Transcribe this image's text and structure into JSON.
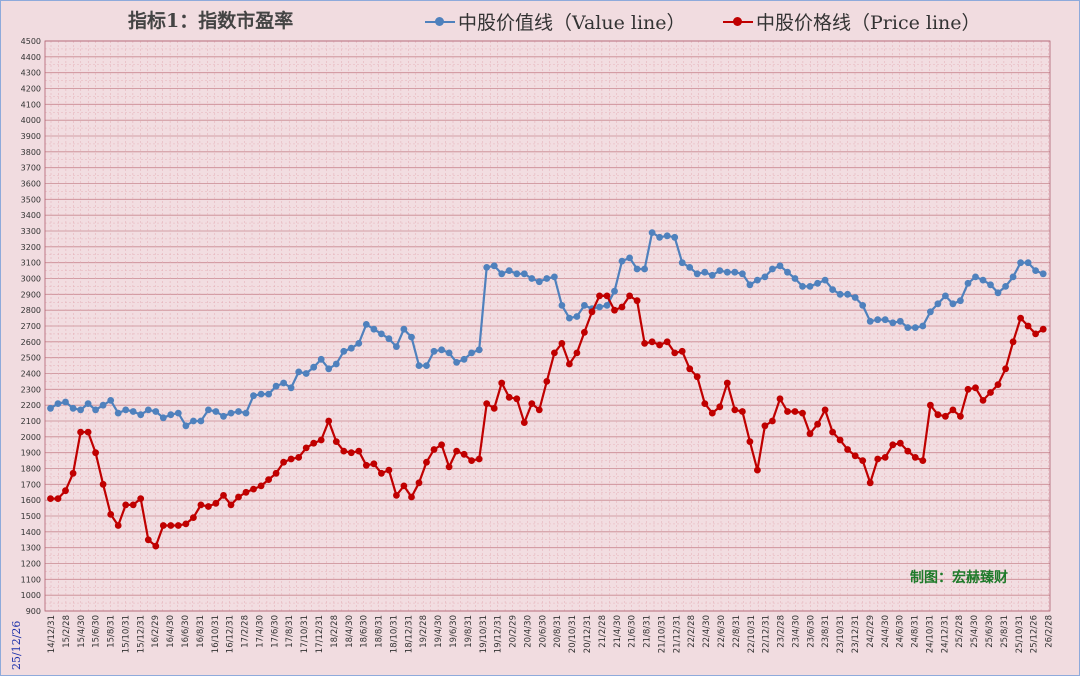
{
  "chart_data": {
    "type": "line",
    "title": "指标1：指数市盈率",
    "xlabel": "",
    "ylabel": "",
    "ylim": [
      900,
      4500
    ],
    "yticks": [
      900,
      1000,
      1100,
      1200,
      1300,
      1400,
      1500,
      1600,
      1700,
      1800,
      1900,
      2000,
      2100,
      2200,
      2300,
      2400,
      2500,
      2600,
      2700,
      2800,
      2900,
      3000,
      3100,
      3200,
      3300,
      3400,
      3500,
      3600,
      3700,
      3800,
      3900,
      4000,
      4100,
      4200,
      4300,
      4400,
      4500
    ],
    "x_tick_labels": [
      "14/12/31",
      "15/2/28",
      "15/4/30",
      "15/6/30",
      "15/8/31",
      "15/10/31",
      "15/12/31",
      "16/2/29",
      "16/4/30",
      "16/6/30",
      "16/8/31",
      "16/10/31",
      "16/12/31",
      "17/2/28",
      "17/4/30",
      "17/6/30",
      "17/8/31",
      "17/10/31",
      "17/12/31",
      "18/2/28",
      "18/4/30",
      "18/6/30",
      "18/8/31",
      "18/10/31",
      "18/12/31",
      "19/2/28",
      "19/4/30",
      "19/6/30",
      "19/8/31",
      "19/10/31",
      "19/12/31",
      "20/2/29",
      "20/4/30",
      "20/6/30",
      "20/8/31",
      "20/10/31",
      "20/12/31",
      "21/2/28",
      "21/4/30",
      "21/6/30",
      "21/8/31",
      "21/10/31",
      "21/12/31",
      "22/2/28",
      "22/4/30",
      "22/6/30",
      "22/8/31",
      "22/10/31",
      "22/12/31",
      "23/2/28",
      "23/4/30",
      "23/6/30",
      "23/8/31",
      "23/10/31",
      "23/12/31",
      "24/2/29",
      "24/4/30",
      "24/6/30",
      "24/8/31",
      "24/10/31",
      "24/12/31",
      "25/2/28",
      "25/4/30",
      "25/6/30",
      "25/8/31",
      "25/10/31",
      "25/12/26",
      "26/2/28"
    ],
    "grid": true,
    "legend_position": "top",
    "series": [
      {
        "name": "中股价值线（Value line）",
        "color": "#4f81bd",
        "values": [
          2180,
          2210,
          2220,
          2180,
          2170,
          2210,
          2170,
          2200,
          2230,
          2150,
          2170,
          2160,
          2140,
          2170,
          2160,
          2120,
          2140,
          2150,
          2070,
          2100,
          2100,
          2170,
          2160,
          2130,
          2150,
          2160,
          2150,
          2260,
          2270,
          2270,
          2320,
          2340,
          2310,
          2410,
          2400,
          2440,
          2490,
          2430,
          2460,
          2540,
          2560,
          2590,
          2710,
          2680,
          2650,
          2620,
          2570,
          2680,
          2630,
          2450,
          2450,
          2540,
          2550,
          2530,
          2470,
          2490,
          2530,
          2550,
          3070,
          3080,
          3030,
          3050,
          3030,
          3030,
          3000,
          2980,
          3000,
          3010,
          2830,
          2750,
          2760,
          2830,
          2810,
          2820,
          2830,
          2920,
          3110,
          3130,
          3060,
          3060,
          3290,
          3260,
          3270,
          3260,
          3100,
          3070,
          3030,
          3040,
          3020,
          3050,
          3040,
          3040,
          3030,
          2960,
          2990,
          3010,
          3060,
          3080,
          3040,
          3000,
          2950,
          2950,
          2970,
          2990,
          2930,
          2900,
          2900,
          2880,
          2830,
          2730,
          2740,
          2740,
          2720,
          2730,
          2690,
          2690,
          2700,
          2790,
          2840,
          2890,
          2840,
          2860,
          2970,
          3010,
          2990,
          2960,
          2910,
          2950,
          3010,
          3100,
          3100,
          3050,
          3030
        ]
      },
      {
        "name": "中股价格线（Price line）",
        "color": "#c00000",
        "values": [
          1610,
          1610,
          1660,
          1770,
          2030,
          2030,
          1900,
          1700,
          1510,
          1440,
          1570,
          1570,
          1610,
          1350,
          1310,
          1440,
          1440,
          1440,
          1450,
          1490,
          1570,
          1560,
          1580,
          1630,
          1570,
          1620,
          1650,
          1670,
          1690,
          1730,
          1770,
          1840,
          1860,
          1870,
          1930,
          1960,
          1980,
          2100,
          1970,
          1910,
          1900,
          1910,
          1820,
          1830,
          1770,
          1790,
          1630,
          1690,
          1620,
          1710,
          1840,
          1920,
          1950,
          1810,
          1910,
          1890,
          1850,
          1860,
          2210,
          2180,
          2340,
          2250,
          2240,
          2090,
          2210,
          2170,
          2350,
          2530,
          2590,
          2460,
          2530,
          2660,
          2790,
          2890,
          2890,
          2800,
          2820,
          2890,
          2860,
          2590,
          2600,
          2580,
          2600,
          2530,
          2540,
          2430,
          2380,
          2210,
          2150,
          2190,
          2340,
          2170,
          2160,
          1970,
          1790,
          2070,
          2100,
          2240,
          2160,
          2160,
          2150,
          2020,
          2080,
          2170,
          2030,
          1980,
          1920,
          1880,
          1850,
          1710,
          1860,
          1870,
          1950,
          1960,
          1910,
          1870,
          1850,
          2200,
          2140,
          2130,
          2170,
          2130,
          2300,
          2310,
          2230,
          2280,
          2330,
          2430,
          2600,
          2750,
          2700,
          2650,
          2680
        ]
      }
    ]
  },
  "credit": "制图：宏赫臻财",
  "date_stamp": "25/12/26"
}
